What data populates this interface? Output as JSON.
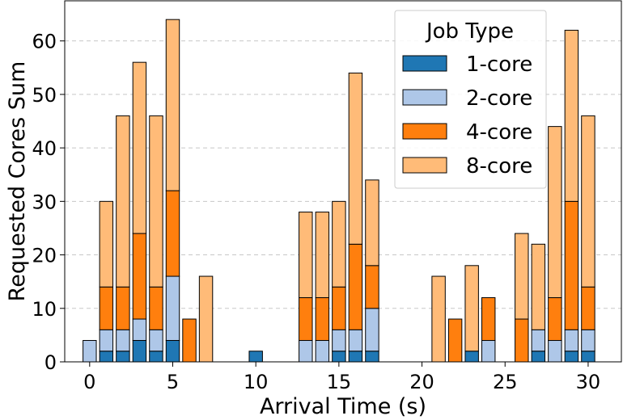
{
  "chart_data": {
    "type": "bar",
    "stacked": true,
    "xlabel": "Arrival Time (s)",
    "ylabel": "Requested Cores Sum",
    "xlim": [
      -1.5,
      32.0
    ],
    "ylim": [
      0,
      67.5
    ],
    "xticks": [
      0,
      5,
      10,
      15,
      20,
      25,
      30
    ],
    "yticks": [
      0,
      10,
      20,
      30,
      40,
      50,
      60
    ],
    "grid": "y-dashed",
    "legend": {
      "title": "Job Type",
      "placement": "top-right"
    },
    "x": [
      0,
      1,
      2,
      3,
      4,
      5,
      6,
      7,
      8,
      9,
      10,
      11,
      12,
      13,
      14,
      15,
      16,
      17,
      18,
      19,
      20,
      21,
      22,
      23,
      24,
      25,
      26,
      27,
      28,
      29,
      30
    ],
    "series": [
      {
        "name": "1-core",
        "color": "#1f77b4",
        "values": [
          0,
          2,
          2,
          4,
          2,
          4,
          0,
          0,
          0,
          0,
          2,
          0,
          0,
          0,
          0,
          2,
          2,
          2,
          0,
          0,
          0,
          0,
          0,
          2,
          0,
          0,
          0,
          2,
          0,
          2,
          2
        ]
      },
      {
        "name": "2-core",
        "color": "#aec7e8",
        "values": [
          4,
          4,
          4,
          4,
          4,
          12,
          0,
          0,
          0,
          0,
          0,
          0,
          0,
          4,
          4,
          4,
          4,
          8,
          0,
          0,
          0,
          0,
          0,
          0,
          4,
          0,
          0,
          4,
          4,
          4,
          4
        ]
      },
      {
        "name": "4-core",
        "color": "#ff7f0e",
        "values": [
          0,
          8,
          8,
          16,
          8,
          16,
          8,
          0,
          0,
          0,
          0,
          0,
          0,
          8,
          8,
          8,
          16,
          8,
          0,
          0,
          0,
          0,
          8,
          0,
          8,
          0,
          8,
          0,
          8,
          24,
          8
        ]
      },
      {
        "name": "8-core",
        "color": "#ffbb78",
        "values": [
          0,
          16,
          32,
          32,
          32,
          32,
          0,
          16,
          0,
          0,
          0,
          0,
          0,
          16,
          16,
          16,
          32,
          16,
          0,
          0,
          0,
          16,
          0,
          16,
          0,
          0,
          16,
          16,
          32,
          32,
          32
        ]
      }
    ]
  }
}
